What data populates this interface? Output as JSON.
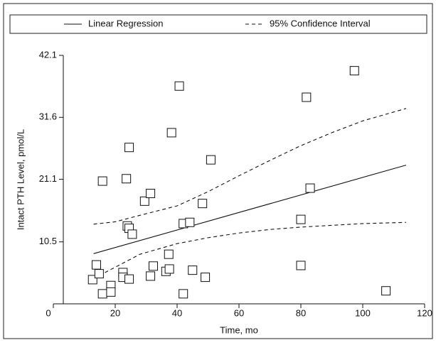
{
  "chart_data": {
    "type": "scatter",
    "y_label": "Intact PTH Level, pmol/L",
    "x_label": "Time, mo",
    "xlim": [
      0,
      120
    ],
    "xticks": [
      0,
      20,
      40,
      60,
      80,
      100,
      120
    ],
    "ylim": [
      0,
      42.1
    ],
    "yticks": [
      10.5,
      21.1,
      31.6,
      42.1
    ],
    "points": {
      "x": [
        12.7,
        13.9,
        14.8,
        15.9,
        18.6,
        18.6,
        15.9,
        24.5,
        23.6,
        23.9,
        24.5,
        25.5,
        22.5,
        22.5,
        24.5,
        29.5,
        31.4,
        31.4,
        32.3,
        36.4,
        37.5,
        37.3,
        38.2,
        40.7,
        42.0,
        44.1,
        42.0,
        45.0,
        48.2,
        49.1,
        50.9,
        80.0,
        80.0,
        81.8,
        83.0,
        97.3,
        107.5
      ],
      "y": [
        4.1,
        6.6,
        5.1,
        1.7,
        3.1,
        2.0,
        20.8,
        26.5,
        21.2,
        13.2,
        12.8,
        11.8,
        5.3,
        4.5,
        4.2,
        17.4,
        18.7,
        4.7,
        6.4,
        5.5,
        5.9,
        8.4,
        29.0,
        36.9,
        13.6,
        13.8,
        1.7,
        5.7,
        17.0,
        4.5,
        24.4,
        14.3,
        6.5,
        35.0,
        19.6,
        39.5,
        2.2
      ]
    },
    "series": [
      {
        "name": "Linear Regression",
        "style": "solid",
        "x": [
          13,
          114
        ],
        "values": [
          8.5,
          23.5
        ]
      },
      {
        "name": "95% Confidence Interval",
        "style": "dashed",
        "x": [
          13,
          20,
          28,
          40,
          50,
          60,
          70,
          80,
          90,
          100,
          114
        ],
        "values": [
          13.5,
          13.9,
          15.0,
          16.6,
          19.0,
          21.7,
          24.3,
          26.8,
          29.0,
          31.0,
          33.1
        ],
        "lower": [
          4.3,
          6.2,
          8.4,
          10.2,
          11.2,
          12.0,
          12.6,
          13.0,
          13.3,
          13.6,
          13.8
        ]
      }
    ]
  }
}
